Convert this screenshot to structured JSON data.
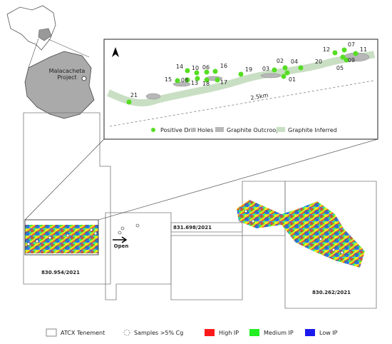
{
  "locator": {
    "label": [
      "Malacacheta",
      "Project"
    ]
  },
  "inset": {
    "scale": "2.5km",
    "holes": [
      "21",
      "15",
      "14",
      "10",
      "06",
      "16",
      "08",
      "13",
      "18",
      "17",
      "19",
      "03",
      "02",
      "04",
      "01",
      "20",
      "12",
      "07",
      "11",
      "05",
      "09"
    ],
    "legend": [
      "Positive Drill Holes",
      "Graphite Outcroop",
      "Graphite Inferred"
    ]
  },
  "tenements": [
    "830.954/2021",
    "831.698/2021",
    "830.262/2021"
  ],
  "open": "Open",
  "legend": [
    "ATCX Tenement",
    "Samples >5% Cg",
    "High IP",
    "Medium IP",
    "Low IP"
  ]
}
